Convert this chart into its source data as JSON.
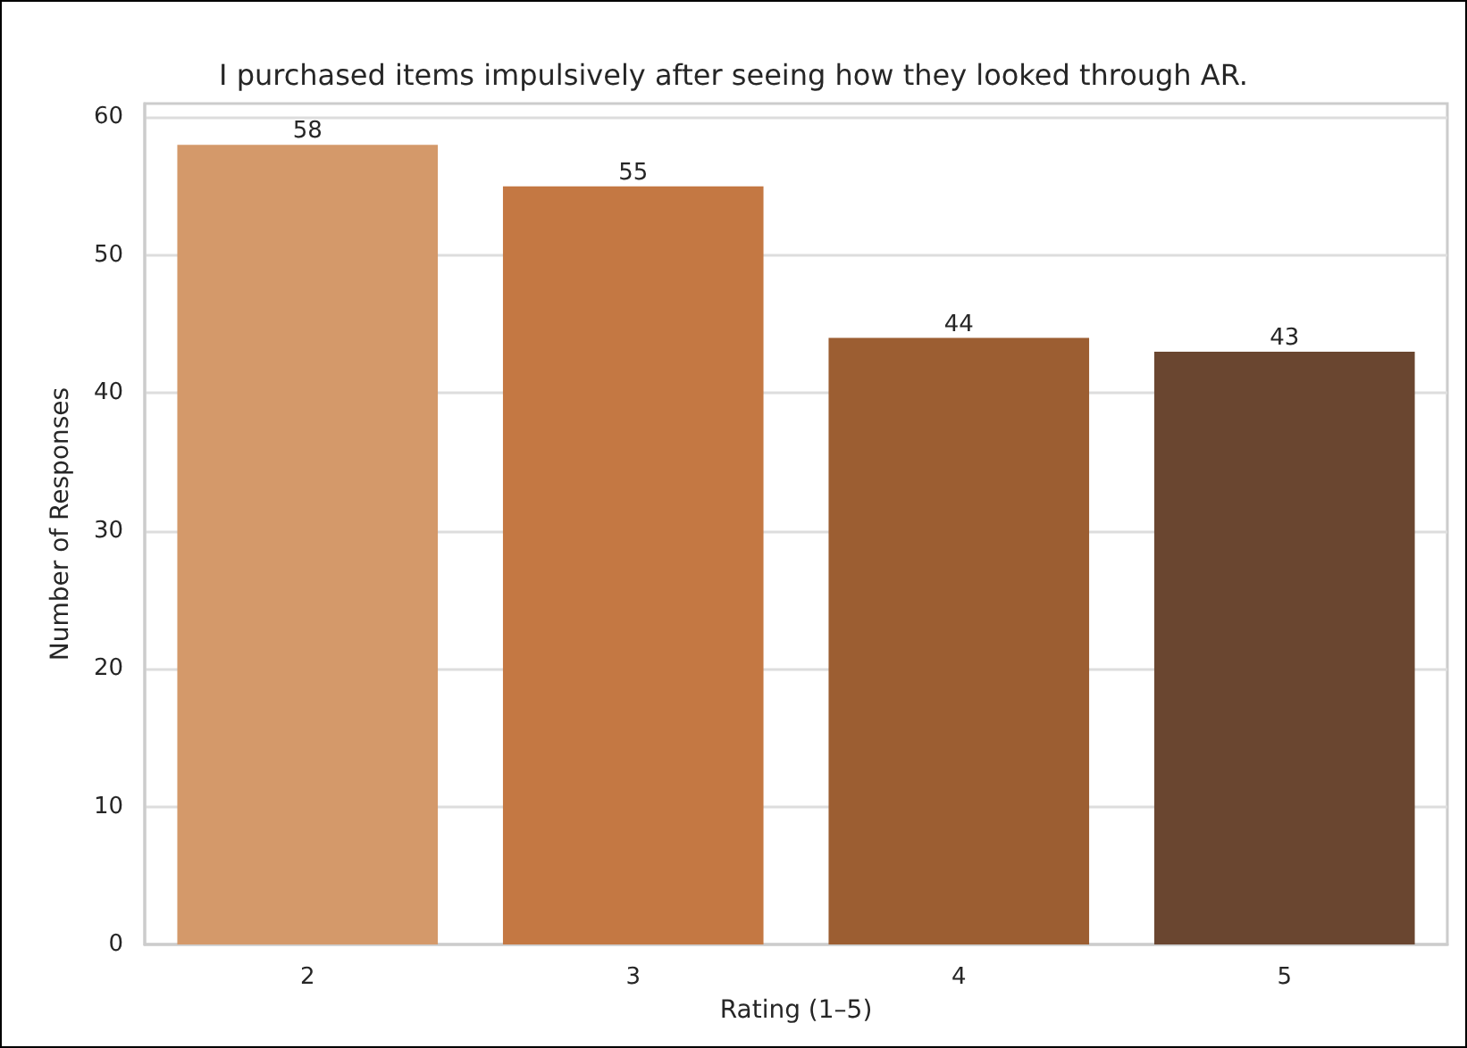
{
  "chart_data": {
    "type": "bar",
    "title": "I purchased items impulsively after seeing how they looked through AR.",
    "xlabel": "Rating (1–5)",
    "ylabel": "Number of Responses",
    "categories": [
      "2",
      "3",
      "4",
      "5"
    ],
    "values": [
      58,
      55,
      44,
      43
    ],
    "colors": [
      "#d4996a",
      "#c47843",
      "#9c5e32",
      "#6a4630"
    ],
    "ylim": [
      0,
      61
    ],
    "yticks": [
      0,
      10,
      20,
      30,
      40,
      50,
      60
    ],
    "grid": "y",
    "data_labels": true
  }
}
